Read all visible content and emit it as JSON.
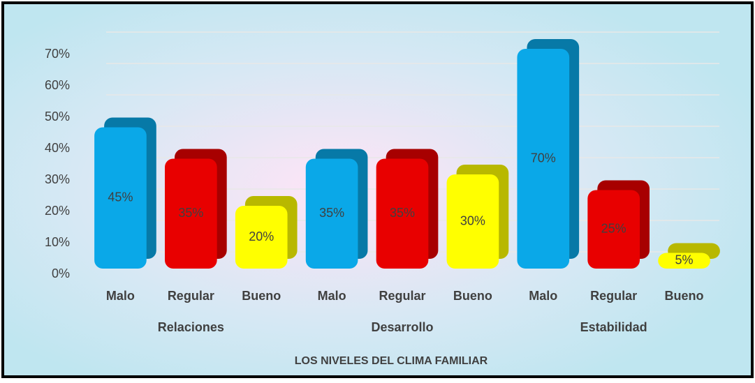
{
  "chart_data": {
    "type": "bar",
    "categories": [
      "Malo",
      "Regular",
      "Bueno",
      "Malo",
      "Regular",
      "Bueno",
      "Malo",
      "Regular",
      "Bueno"
    ],
    "groups": [
      "Relaciones",
      "Desarrollo",
      "Estabilidad"
    ],
    "values": [
      45,
      35,
      20,
      35,
      35,
      30,
      70,
      25,
      5
    ],
    "value_labels": [
      "45%",
      "35%",
      "20%",
      "35%",
      "35%",
      "30%",
      "70%",
      "25%",
      "5%"
    ],
    "colors": [
      "#0aa8e8",
      "#e80000",
      "#ffff00",
      "#0aa8e8",
      "#e80000",
      "#ffff00",
      "#0aa8e8",
      "#e80000",
      "#ffff00"
    ],
    "x_label": "LOS NIVELES DEL CLIMA FAMILIAR",
    "ylim": [
      0,
      70
    ],
    "yticks": [
      {
        "value": 0,
        "label": "0%"
      },
      {
        "value": 10,
        "label": "10%"
      },
      {
        "value": 20,
        "label": "20%"
      },
      {
        "value": 30,
        "label": "30%"
      },
      {
        "value": 40,
        "label": "40%"
      },
      {
        "value": 50,
        "label": "50%"
      },
      {
        "value": 60,
        "label": "60%"
      },
      {
        "value": 70,
        "label": "70%"
      }
    ],
    "grid": true
  }
}
